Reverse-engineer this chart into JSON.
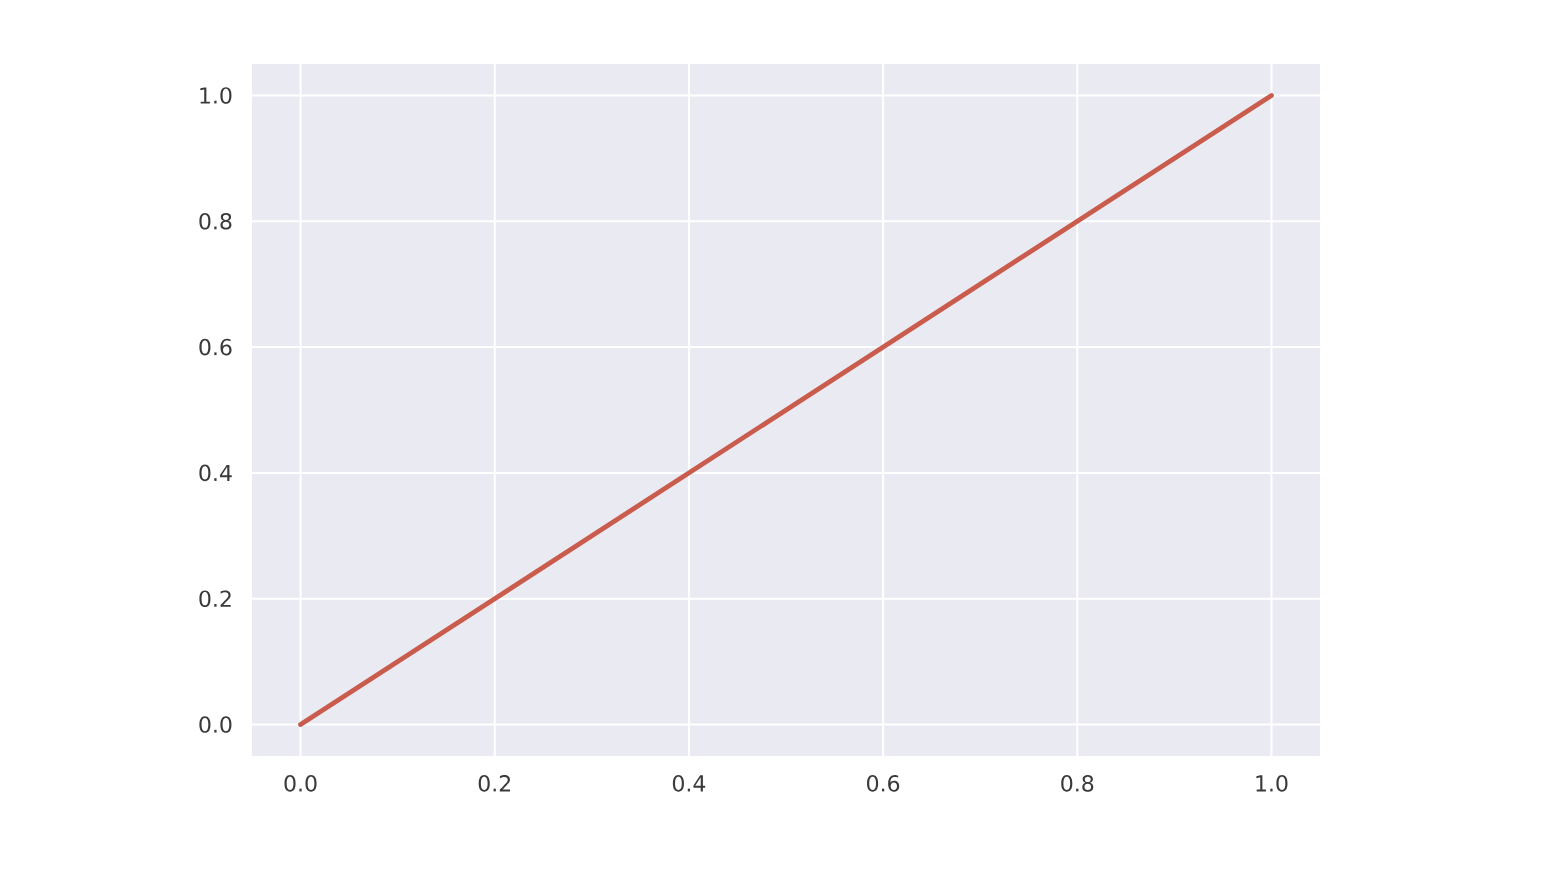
{
  "chart_data": {
    "type": "line",
    "x": [
      0,
      1
    ],
    "series": [
      {
        "color": "#c95c4c",
        "values": [
          0,
          1
        ]
      }
    ],
    "xlim": [
      -0.05,
      1.05
    ],
    "ylim": [
      -0.05,
      1.05
    ],
    "xticks": [
      {
        "value": 0,
        "label": "0.0"
      },
      {
        "value": 0.2,
        "label": "0.2"
      },
      {
        "value": 0.4,
        "label": "0.4"
      },
      {
        "value": 0.6,
        "label": "0.6"
      },
      {
        "value": 0.8,
        "label": "0.8"
      },
      {
        "value": 1,
        "label": "1.0"
      }
    ],
    "yticks": [
      {
        "value": 0,
        "label": "0.0"
      },
      {
        "value": 0.2,
        "label": "0.2"
      },
      {
        "value": 0.4,
        "label": "0.4"
      },
      {
        "value": 0.6,
        "label": "0.6"
      },
      {
        "value": 0.8,
        "label": "0.8"
      },
      {
        "value": 1,
        "label": "1.0"
      }
    ],
    "grid": true
  }
}
